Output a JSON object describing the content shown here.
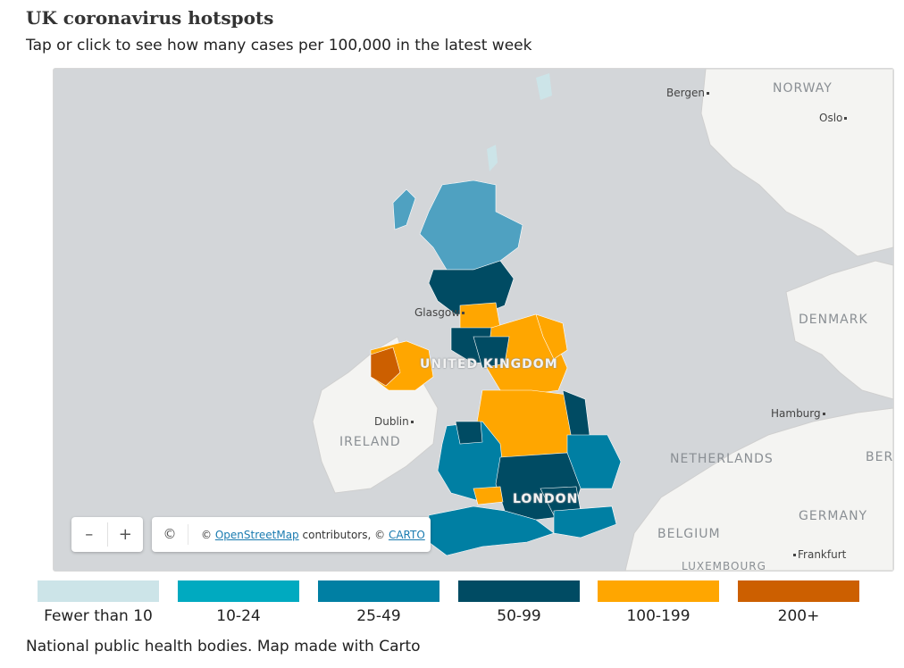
{
  "title": "UK coronavirus hotspots",
  "subtitle": "Tap or click to see how many cases per 100,000 in the latest week",
  "map": {
    "cities": {
      "bergen": "Bergen",
      "oslo": "Oslo",
      "glasgow": "Glasgow",
      "dublin": "Dublin",
      "hamburg": "Hamburg",
      "london": "LONDON",
      "frankfurt": "Frankfurt"
    },
    "countries": {
      "norway": "NORWAY",
      "denmark": "DENMARK",
      "uk": "UNITED KINGDOM",
      "ireland": "IRELAND",
      "netherlands": "NETHERLANDS",
      "ber": "BER",
      "germany": "GERMANY",
      "belgium": "BELGIUM",
      "luxembourg": "LUXEMBOURG"
    },
    "zoom": {
      "out": "–",
      "in": "+"
    },
    "attribution": {
      "info_icon": "©",
      "prefix": "©",
      "osm_link": "OpenStreetMap",
      "middle": "contributors, ©",
      "carto_link": "CARTO"
    }
  },
  "legend": [
    {
      "label": "Fewer than 10",
      "color": "#cce4e8"
    },
    {
      "label": "10-24",
      "color": "#00aac0"
    },
    {
      "label": "25-49",
      "color": "#007fa3"
    },
    {
      "label": "50-99",
      "color": "#004b63"
    },
    {
      "label": "100-199",
      "color": "#ffa600"
    },
    {
      "label": "200+",
      "color": "#cc5f00"
    }
  ],
  "source": "National public health bodies. Map made with Carto"
}
